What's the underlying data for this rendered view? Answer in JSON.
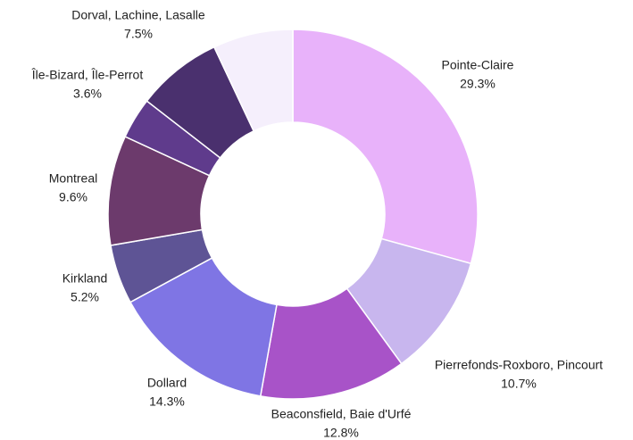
{
  "chart_data": {
    "type": "donut",
    "categories": [
      "Pointe-Claire",
      "Pierrefonds-Roxboro, Pincourt",
      "Beaconsfield, Baie d'Urfé",
      "Dollard",
      "Kirkland",
      "Montreal",
      "Île-Bizard, Île-Perrot",
      "Dorval, Lachine, Lasalle",
      null
    ],
    "values": [
      29.3,
      10.7,
      12.8,
      14.3,
      5.2,
      9.6,
      3.6,
      7.5,
      7.0
    ],
    "value_labels": [
      "29.3%",
      "10.7%",
      "12.8%",
      "14.3%",
      "5.2%",
      "9.6%",
      "3.6%",
      "7.5%",
      null
    ],
    "colors": [
      "#e8b2fa",
      "#c8b6ee",
      "#a853c8",
      "#7f75e4",
      "#5e5495",
      "#6c3a6c",
      "#5f3b8c",
      "#4a306e",
      "#f5effc"
    ]
  }
}
